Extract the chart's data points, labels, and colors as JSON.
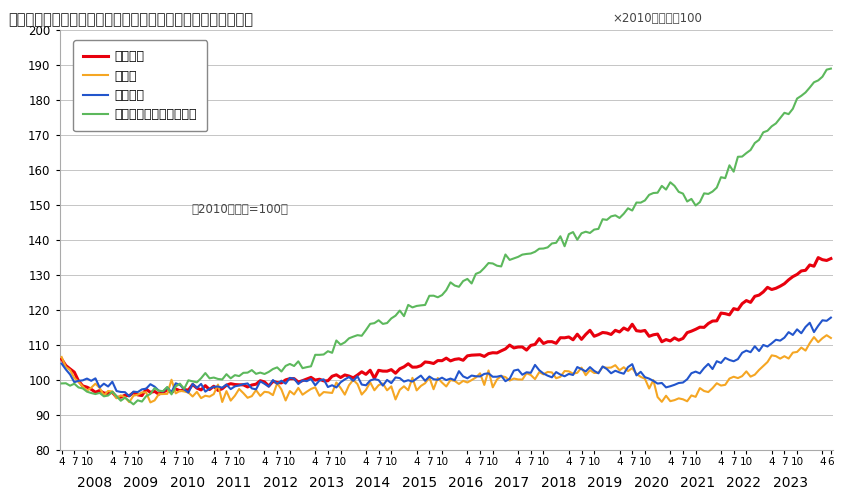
{
  "title": "＜不動産価格指数（住宅）（令和５年６月分・季節調整値）＞",
  "subtitle": "×2010年平均＝100",
  "note": "（2010年平均=100）",
  "ylim": [
    80,
    200
  ],
  "yticks": [
    80,
    90,
    100,
    110,
    120,
    130,
    140,
    150,
    160,
    170,
    180,
    190,
    200
  ],
  "series_names": [
    "住宅総合",
    "住宅地",
    "戸建住宅",
    "マンション（区分所有）"
  ],
  "series_colors": [
    "#e8000d",
    "#f5a623",
    "#2255cc",
    "#5cb85c"
  ],
  "series_linewidths": [
    2.2,
    1.5,
    1.5,
    1.5
  ],
  "bg_color": "#ffffff",
  "grid_color": "#bbbbbb",
  "border_color": "#aaaaaa"
}
